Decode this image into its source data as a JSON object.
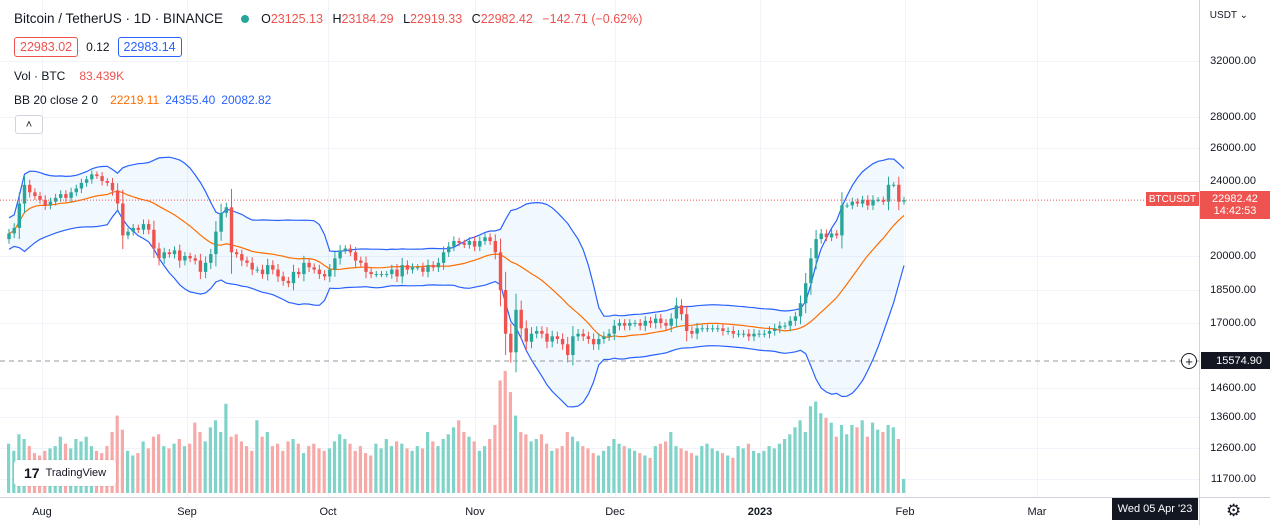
{
  "legend": {
    "title": "Bitcoin / TetherUS · 1D · BINANCE",
    "o_label": "O",
    "o_val": "23125.13",
    "h_label": "H",
    "h_val": "23184.29",
    "l_label": "L",
    "l_val": "22919.33",
    "c_label": "C",
    "c_val": "22982.42",
    "change": "−142.71 (−0.62%)",
    "bid": "22983.02",
    "spread": "0.12",
    "ask": "22983.14"
  },
  "indicators": {
    "vol_name": "Vol · BTC",
    "vol_val": "83.439K",
    "bb_name": "BB 20 close 2 0",
    "bb_mid": "22219.11",
    "bb_upper": "24355.40",
    "bb_lower": "20082.82"
  },
  "collapse_glyph": "˄",
  "currency": "USDT ⌄",
  "symbol_label": "BTCUSDT",
  "current_price": "22982.42",
  "countdown": "14:42:53",
  "crosshair_price": "15574.90",
  "crosshair_date": "Wed 05 Apr '23",
  "plus_glyph": "+",
  "logo_text": "TradingView",
  "logo_mark": "17",
  "settings_glyph": "⚙",
  "price_ticks": [
    "32000.00",
    "28000.00",
    "26000.00",
    "24000.00",
    "20000.00",
    "18500.00",
    "17000.00",
    "14600.00",
    "13600.00",
    "12600.00",
    "11700.00"
  ],
  "time_ticks": [
    "Aug",
    "Sep",
    "Oct",
    "Nov",
    "Dec",
    "2023",
    "Feb",
    "Mar"
  ],
  "colors": {
    "up": "#26a69a",
    "down": "#ef5350",
    "bb_band": "#2962ff",
    "bb_basis": "#ff6d00",
    "bb_fill": "#2196f3",
    "vol_up": "#7fd3c9",
    "vol_down": "#f7a9a7"
  },
  "chart_data": {
    "type": "candlestick",
    "symbol": "BTCUSDT",
    "interval": "1D",
    "x_start": "2022-07-26",
    "x_end": "2023-01-31",
    "close_series_approx": [
      21200,
      21500,
      22800,
      23800,
      23400,
      23200,
      23000,
      22700,
      22900,
      23100,
      23300,
      23100,
      23400,
      23600,
      23900,
      24100,
      24400,
      24300,
      24000,
      23900,
      23500,
      22800,
      21100,
      21300,
      21500,
      21400,
      21700,
      21400,
      20400,
      19900,
      20200,
      20100,
      20300,
      19800,
      20000,
      19900,
      19800,
      19300,
      19700,
      20100,
      21300,
      22300,
      22600,
      20200,
      20100,
      19800,
      19700,
      19400,
      19400,
      19200,
      19600,
      19400,
      19100,
      18900,
      18800,
      19300,
      19200,
      19700,
      19500,
      19400,
      19200,
      19100,
      19400,
      19900,
      20300,
      20400,
      20200,
      19800,
      19700,
      19300,
      19200,
      19200,
      19200,
      19200,
      19400,
      19100,
      19600,
      19400,
      19500,
      19500,
      19300,
      19600,
      19500,
      19700,
      20200,
      20500,
      20800,
      20700,
      20600,
      20800,
      20500,
      20800,
      21000,
      20800,
      20200,
      18500,
      16600,
      15900,
      17600,
      16800,
      16300,
      16600,
      16700,
      16600,
      16300,
      16500,
      16400,
      16200,
      15800,
      16500,
      16600,
      16500,
      16400,
      16200,
      16400,
      16500,
      16600,
      16900,
      17000,
      16900,
      17000,
      17000,
      16900,
      17100,
      17000,
      17200,
      17000,
      16900,
      17200,
      17800,
      17400,
      16700,
      16600,
      16800,
      16800,
      16800,
      16800,
      16800,
      16700,
      16700,
      16600,
      16600,
      16600,
      16500,
      16600,
      16600,
      16600,
      16700,
      16800,
      16900,
      16900,
      17100,
      17300,
      17900,
      18800,
      19900,
      20900,
      21200,
      21000,
      21200,
      21100,
      22700,
      22700,
      22900,
      22800,
      23000,
      22700,
      23000,
      23000,
      22900,
      23800,
      23800,
      22900,
      22982
    ],
    "volume_btc_approx_k": [
      210,
      180,
      250,
      230,
      200,
      170,
      160,
      180,
      190,
      200,
      240,
      210,
      190,
      230,
      220,
      240,
      200,
      180,
      170,
      200,
      260,
      330,
      270,
      180,
      160,
      170,
      220,
      190,
      240,
      250,
      200,
      190,
      210,
      230,
      200,
      210,
      300,
      260,
      220,
      280,
      310,
      260,
      380,
      240,
      250,
      220,
      200,
      180,
      310,
      240,
      260,
      200,
      210,
      180,
      220,
      230,
      210,
      170,
      200,
      210,
      190,
      180,
      190,
      220,
      250,
      230,
      210,
      180,
      200,
      170,
      160,
      210,
      190,
      230,
      200,
      220,
      210,
      190,
      180,
      200,
      190,
      260,
      220,
      200,
      230,
      250,
      280,
      310,
      260,
      240,
      220,
      180,
      200,
      230,
      290,
      480,
      520,
      430,
      330,
      260,
      250,
      220,
      230,
      250,
      210,
      180,
      190,
      200,
      260,
      240,
      220,
      200,
      190,
      170,
      160,
      180,
      200,
      230,
      210,
      200,
      190,
      180,
      170,
      160,
      150,
      200,
      210,
      220,
      260,
      200,
      190,
      180,
      170,
      160,
      200,
      210,
      190,
      180,
      170,
      160,
      150,
      200,
      190,
      210,
      180,
      170,
      180,
      200,
      190,
      210,
      230,
      250,
      280,
      310,
      260,
      370,
      390,
      340,
      320,
      300,
      240,
      290,
      250,
      290,
      280,
      310,
      240,
      300,
      270,
      260,
      290,
      280,
      230,
      60
    ],
    "bb_length": 20,
    "bb_stddev": 2,
    "ylim": [
      11000,
      33500
    ]
  }
}
